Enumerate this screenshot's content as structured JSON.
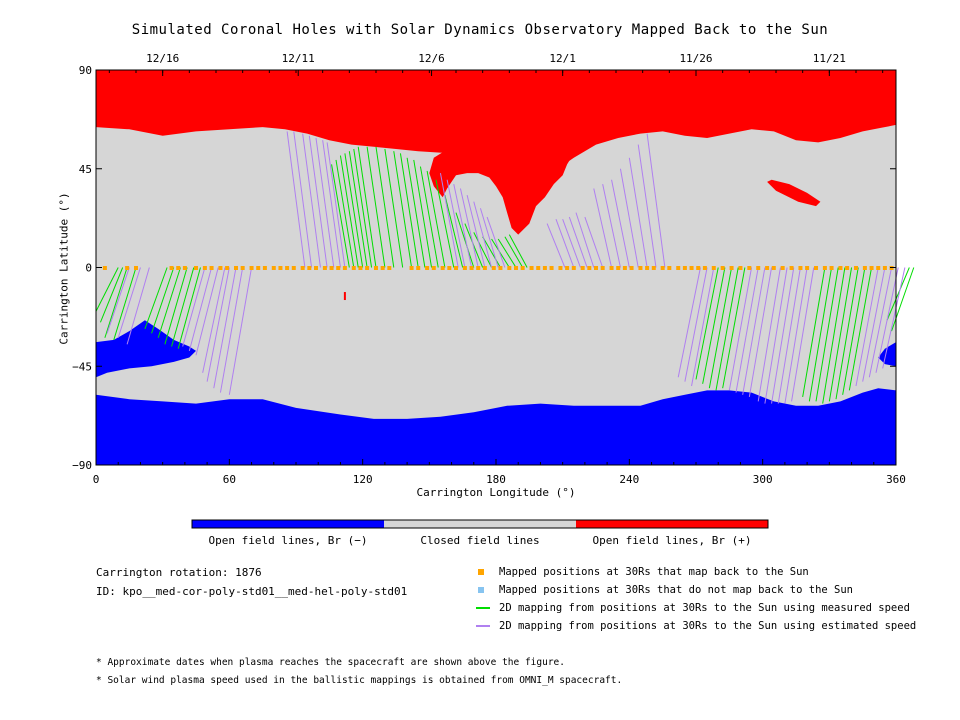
{
  "title": "Simulated Coronal Holes with Solar Dynamics Observatory Mapped Back to the Sun",
  "colors": {
    "open_negative": "#0000ff",
    "closed": "#d6d6d6",
    "open_positive": "#ff0000",
    "mapped_point": "#ffa500",
    "unmapped_point": "#87c4f0",
    "measured_line": "#00dd00",
    "estimated_line": "#b080f0"
  },
  "chart_data": {
    "type": "map",
    "xlabel": "Carrington Longitude (°)",
    "ylabel": "Carrington Latitude (°)",
    "xlim": [
      0,
      360
    ],
    "ylim": [
      -90,
      90
    ],
    "x_ticks": [
      "0",
      "60",
      "120",
      "180",
      "240",
      "300",
      "360"
    ],
    "y_ticks": [
      "90",
      "45",
      "0",
      "−45",
      "−90"
    ],
    "date_ticks": [
      {
        "label": "12/16",
        "lon": 30
      },
      {
        "label": "12/11",
        "lon": 91
      },
      {
        "label": "12/6",
        "lon": 151
      },
      {
        "label": "12/1",
        "lon": 210
      },
      {
        "label": "11/26",
        "lon": 270
      },
      {
        "label": "11/21",
        "lon": 330
      }
    ],
    "colorbar": {
      "labels": [
        "Open field lines, Br (−)",
        "Closed field lines",
        "Open field lines, Br (+)"
      ]
    },
    "north_boundary": [
      [
        0,
        64
      ],
      [
        15,
        63
      ],
      [
        30,
        60
      ],
      [
        45,
        62
      ],
      [
        60,
        63
      ],
      [
        75,
        64
      ],
      [
        85,
        63
      ],
      [
        95,
        61
      ],
      [
        105,
        58
      ],
      [
        115,
        56
      ],
      [
        125,
        55
      ],
      [
        135,
        54
      ],
      [
        145,
        53
      ],
      [
        160,
        52
      ],
      [
        175,
        45
      ],
      [
        185,
        38
      ],
      [
        195,
        40
      ],
      [
        205,
        43
      ],
      [
        215,
        50
      ],
      [
        225,
        56
      ],
      [
        235,
        59
      ],
      [
        245,
        61
      ],
      [
        255,
        62
      ],
      [
        265,
        60
      ],
      [
        275,
        59
      ],
      [
        285,
        61
      ],
      [
        295,
        63
      ],
      [
        305,
        62
      ],
      [
        315,
        58
      ],
      [
        325,
        57
      ],
      [
        335,
        59
      ],
      [
        345,
        62
      ],
      [
        360,
        65
      ]
    ],
    "south_boundary": [
      [
        0,
        -58
      ],
      [
        15,
        -60
      ],
      [
        30,
        -61
      ],
      [
        45,
        -62
      ],
      [
        60,
        -60
      ],
      [
        75,
        -60
      ],
      [
        90,
        -64
      ],
      [
        110,
        -67
      ],
      [
        125,
        -69
      ],
      [
        140,
        -69
      ],
      [
        155,
        -68
      ],
      [
        170,
        -66
      ],
      [
        185,
        -63
      ],
      [
        200,
        -62
      ],
      [
        215,
        -63
      ],
      [
        230,
        -63
      ],
      [
        245,
        -63
      ],
      [
        255,
        -60
      ],
      [
        265,
        -58
      ],
      [
        275,
        -56
      ],
      [
        285,
        -56
      ],
      [
        295,
        -57
      ],
      [
        305,
        -61
      ],
      [
        315,
        -63
      ],
      [
        325,
        -63
      ],
      [
        335,
        -61
      ],
      [
        345,
        -57
      ],
      [
        352,
        -55
      ],
      [
        360,
        -56
      ]
    ],
    "south_lobe_left": [
      [
        0,
        -34
      ],
      [
        8,
        -33
      ],
      [
        15,
        -29
      ],
      [
        22,
        -24
      ],
      [
        28,
        -28
      ],
      [
        35,
        -33
      ],
      [
        42,
        -36
      ],
      [
        45,
        -38
      ],
      [
        42,
        -41
      ],
      [
        35,
        -43
      ],
      [
        25,
        -45
      ],
      [
        15,
        -46
      ],
      [
        5,
        -48
      ],
      [
        0,
        -50
      ]
    ],
    "south_lobe_right": [
      [
        360,
        -34
      ],
      [
        355,
        -37
      ],
      [
        352,
        -41
      ],
      [
        355,
        -44
      ],
      [
        360,
        -45
      ]
    ],
    "north_lobe": [
      [
        158,
        36
      ],
      [
        162,
        42
      ],
      [
        167,
        43
      ],
      [
        172,
        43
      ],
      [
        177,
        41
      ],
      [
        180,
        37
      ],
      [
        183,
        32
      ],
      [
        185,
        25
      ],
      [
        187,
        18
      ],
      [
        190,
        15
      ],
      [
        195,
        20
      ],
      [
        198,
        28
      ],
      [
        202,
        32
      ],
      [
        206,
        38
      ],
      [
        210,
        42
      ],
      [
        212,
        47
      ],
      [
        215,
        52
      ],
      [
        222,
        56
      ],
      [
        235,
        60
      ],
      [
        220,
        62
      ],
      [
        200,
        62
      ],
      [
        185,
        60
      ],
      [
        170,
        58
      ],
      [
        160,
        55
      ],
      [
        152,
        50
      ],
      [
        150,
        43
      ],
      [
        152,
        37
      ],
      [
        156,
        32
      ],
      [
        158,
        36
      ]
    ],
    "north_island": [
      [
        304,
        40
      ],
      [
        312,
        38
      ],
      [
        320,
        34
      ],
      [
        326,
        30
      ],
      [
        324,
        28
      ],
      [
        316,
        30
      ],
      [
        306,
        35
      ],
      [
        302,
        39
      ]
    ],
    "red_dot": [
      112,
      -13
    ],
    "equator_points_lon": [
      4,
      14,
      18,
      34,
      37,
      40,
      45,
      49,
      52,
      56,
      59,
      63,
      66,
      70,
      73,
      76,
      80,
      83,
      86,
      89,
      93,
      96,
      99,
      103,
      106,
      109,
      112,
      116,
      119,
      122,
      126,
      129,
      132,
      142,
      145,
      149,
      152,
      156,
      159,
      162,
      166,
      169,
      172,
      175,
      179,
      182,
      186,
      189,
      192,
      196,
      199,
      202,
      205,
      209,
      212,
      215,
      219,
      222,
      225,
      228,
      232,
      235,
      238,
      241,
      245,
      248,
      251,
      255,
      258,
      262,
      265,
      268,
      271,
      274,
      278,
      282,
      286,
      290,
      294,
      298,
      302,
      305,
      309,
      313,
      317,
      320,
      324,
      328,
      331,
      335,
      338,
      342,
      346,
      349,
      352,
      355,
      358
    ],
    "measured_lines": [
      [
        0,
        -20
      ],
      [
        2,
        -25
      ],
      [
        4,
        -32
      ],
      [
        8,
        -33
      ],
      [
        22,
        -28
      ],
      [
        25,
        -30
      ],
      [
        28,
        -32
      ],
      [
        31,
        -35
      ],
      [
        34,
        -36
      ],
      [
        37,
        -37
      ],
      [
        106,
        47
      ],
      [
        108,
        49
      ],
      [
        110,
        51
      ],
      [
        112,
        52
      ],
      [
        114,
        53
      ],
      [
        116,
        54
      ],
      [
        118,
        55
      ],
      [
        122,
        55
      ],
      [
        126,
        55
      ],
      [
        130,
        54
      ],
      [
        134,
        53
      ],
      [
        137,
        52
      ],
      [
        140,
        50
      ],
      [
        143,
        49
      ],
      [
        146,
        46
      ],
      [
        149,
        44
      ],
      [
        153,
        40
      ],
      [
        157,
        33
      ],
      [
        162,
        25
      ],
      [
        166,
        20
      ],
      [
        170,
        16
      ],
      [
        174,
        14
      ],
      [
        178,
        13
      ],
      [
        181,
        13
      ],
      [
        184,
        14
      ],
      [
        186,
        15
      ],
      [
        270,
        -51
      ],
      [
        273,
        -53
      ],
      [
        276,
        -55
      ],
      [
        279,
        -56
      ],
      [
        282,
        -55
      ],
      [
        318,
        -59
      ],
      [
        321,
        -61
      ],
      [
        324,
        -61
      ],
      [
        327,
        -62
      ],
      [
        330,
        -61
      ],
      [
        333,
        -60
      ],
      [
        336,
        -58
      ],
      [
        339,
        -56
      ],
      [
        356,
        -24
      ],
      [
        358,
        -29
      ]
    ],
    "estimated_lines": [
      [
        5,
        -30
      ],
      [
        10,
        -32
      ],
      [
        14,
        -35
      ],
      [
        39,
        -36
      ],
      [
        42,
        -38
      ],
      [
        45,
        -40
      ],
      [
        48,
        -48
      ],
      [
        50,
        -52
      ],
      [
        53,
        -55
      ],
      [
        56,
        -57
      ],
      [
        60,
        -58
      ],
      [
        86,
        62
      ],
      [
        89,
        62
      ],
      [
        93,
        61
      ],
      [
        96,
        60
      ],
      [
        99,
        59
      ],
      [
        102,
        58
      ],
      [
        104,
        57
      ],
      [
        155,
        43
      ],
      [
        158,
        40
      ],
      [
        161,
        38
      ],
      [
        164,
        36
      ],
      [
        167,
        33
      ],
      [
        170,
        30
      ],
      [
        173,
        27
      ],
      [
        176,
        23
      ],
      [
        203,
        20
      ],
      [
        207,
        22
      ],
      [
        210,
        22
      ],
      [
        213,
        23
      ],
      [
        216,
        25
      ],
      [
        220,
        23
      ],
      [
        224,
        36
      ],
      [
        228,
        38
      ],
      [
        232,
        40
      ],
      [
        236,
        45
      ],
      [
        240,
        50
      ],
      [
        244,
        56
      ],
      [
        248,
        61
      ],
      [
        262,
        -50
      ],
      [
        265,
        -52
      ],
      [
        268,
        -54
      ],
      [
        285,
        -56
      ],
      [
        288,
        -57
      ],
      [
        291,
        -58
      ],
      [
        294,
        -59
      ],
      [
        298,
        -61
      ],
      [
        301,
        -62
      ],
      [
        304,
        -62
      ],
      [
        307,
        -62
      ],
      [
        310,
        -62
      ],
      [
        313,
        -61
      ],
      [
        342,
        -54
      ],
      [
        345,
        -52
      ],
      [
        348,
        -50
      ],
      [
        351,
        -48
      ],
      [
        354,
        -46
      ]
    ]
  },
  "info": {
    "rotation": "Carrington rotation: 1876",
    "id": "ID: kpo__med-cor-poly-std01__med-hel-poly-std01"
  },
  "legend": [
    {
      "type": "square",
      "color": "#ffa500",
      "label": "Mapped positions at 30Rs that map back to the Sun"
    },
    {
      "type": "square",
      "color": "#87c4f0",
      "label": "Mapped positions at 30Rs that do not map back to the Sun"
    },
    {
      "type": "line",
      "color": "#00dd00",
      "label": "2D mapping from positions at 30Rs to the Sun using measured speed"
    },
    {
      "type": "line",
      "color": "#b080f0",
      "label": "2D mapping from positions at 30Rs to the Sun using estimated speed"
    }
  ],
  "notes": [
    "* Approximate dates when plasma reaches the spacecraft are shown above the figure.",
    "* Solar wind plasma speed used in the ballistic mappings is obtained from OMNI_M spacecraft."
  ]
}
